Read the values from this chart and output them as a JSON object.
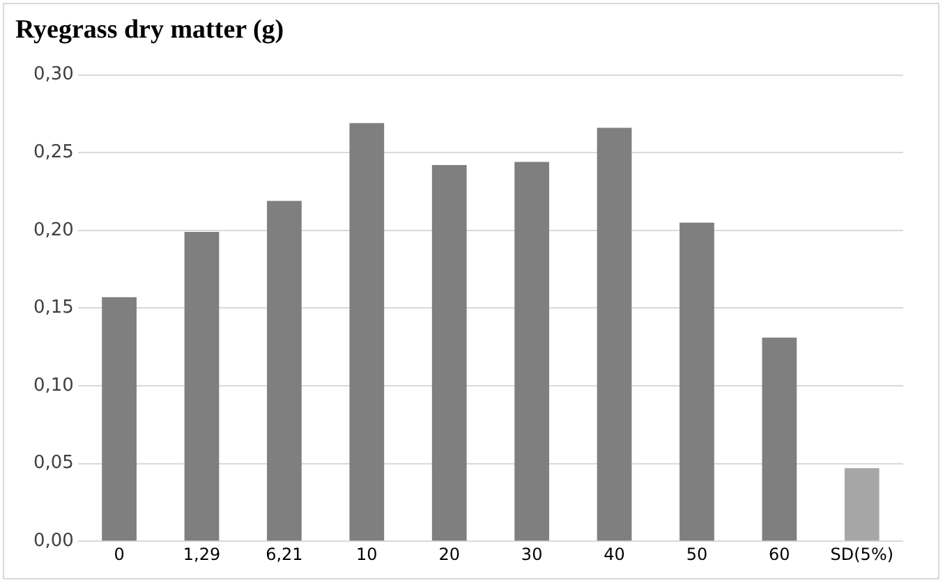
{
  "chart_data": {
    "type": "bar",
    "title": "Ryegrass dry matter (g)",
    "categories": [
      "0",
      "1,29",
      "6,21",
      "10",
      "20",
      "30",
      "40",
      "50",
      "60",
      "SD(5%)"
    ],
    "values": [
      0.157,
      0.199,
      0.219,
      0.269,
      0.242,
      0.244,
      0.266,
      0.205,
      0.131,
      0.047
    ],
    "colors": [
      "#7f7f7f",
      "#7f7f7f",
      "#7f7f7f",
      "#7f7f7f",
      "#7f7f7f",
      "#7f7f7f",
      "#7f7f7f",
      "#7f7f7f",
      "#7f7f7f",
      "#a6a6a6"
    ],
    "ylim": [
      0,
      0.3
    ],
    "yticks": [
      {
        "value": 0,
        "label": "0,00"
      },
      {
        "value": 0.05,
        "label": "0,05"
      },
      {
        "value": 0.1,
        "label": "0,10"
      },
      {
        "value": 0.15,
        "label": "0,15"
      },
      {
        "value": 0.2,
        "label": "0,20"
      },
      {
        "value": 0.25,
        "label": "0,25"
      },
      {
        "value": 0.3,
        "label": "0,30"
      }
    ],
    "grid": "y",
    "legend": false
  }
}
